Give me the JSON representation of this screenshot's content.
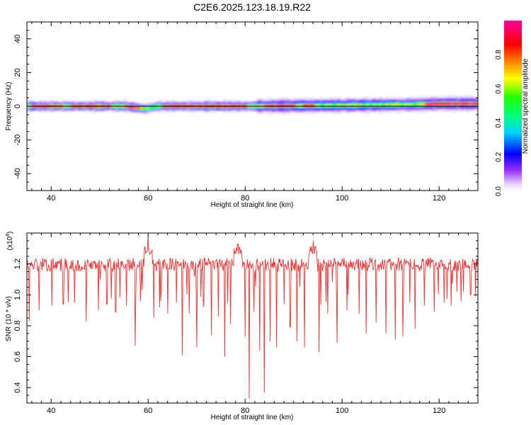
{
  "figure_title": "C2E6.2025.123.18.19.R22",
  "chart_data": [
    {
      "type": "heatmap",
      "xlabel": "Height of straight line (km)",
      "ylabel": "Frequency (Hz)",
      "xlim": [
        35,
        128
      ],
      "ylim": [
        -50,
        50
      ],
      "xticks": [
        40,
        60,
        80,
        100,
        120
      ],
      "yticks": [
        -40,
        -20,
        0,
        20,
        40
      ],
      "grid": false,
      "colorbar": {
        "label": "Normalized spectral amplitude",
        "range": [
          0,
          1
        ],
        "ticks": [
          "0.0",
          "0.2",
          "0.4",
          "0.6",
          "0.8"
        ],
        "colormap": "rainbow (violet-blue-cyan-green-yellow-red-magenta)",
        "orientation": "vertical"
      },
      "description_of_signal": "narrow band centered near 0 Hz across all heights; width about +/-2 to +/-5 Hz; strongest (red) near 36-58, 62-80, 84-90, 120-128 km; dip near 59 km",
      "band_center_hz": [
        {
          "x": 35,
          "y": 0.0
        },
        {
          "x": 55,
          "y": 0.0
        },
        {
          "x": 59,
          "y": -1.5
        },
        {
          "x": 62,
          "y": 0.0
        },
        {
          "x": 80,
          "y": 0.0
        },
        {
          "x": 100,
          "y": 0.5
        },
        {
          "x": 115,
          "y": 1.0
        },
        {
          "x": 120,
          "y": 1.5
        },
        {
          "x": 128,
          "y": 1.5
        }
      ],
      "strong_segments_km": [
        [
          36,
          42
        ],
        [
          44,
          52
        ],
        [
          55,
          58
        ],
        [
          63,
          80
        ],
        [
          84,
          90
        ],
        [
          92,
          94
        ],
        [
          117,
          128
        ]
      ]
    },
    {
      "type": "line",
      "xlabel": "Height of straight line (km)",
      "ylabel": "SNR (10 * v/v)",
      "y_multiplier": "(x10^4)",
      "xlim": [
        35,
        128
      ],
      "ylim": [
        0.3,
        1.4
      ],
      "xticks": [
        40,
        60,
        80,
        100,
        120
      ],
      "yticks": [
        "0.4",
        "0.6",
        "0.8",
        "1.0",
        "1.2"
      ],
      "color": "#ee3333",
      "grid": false,
      "series": [
        {
          "baseline": 1.2,
          "baseline_noise": 0.04,
          "peaks": [
            {
              "x": 60,
              "y": 1.38
            },
            {
              "x": 78.5,
              "y": 1.33
            },
            {
              "x": 94,
              "y": 1.35
            }
          ],
          "dips": [
            {
              "x": 35.5,
              "y": 0.83
            },
            {
              "x": 37.5,
              "y": 0.9
            },
            {
              "x": 40.2,
              "y": 0.93
            },
            {
              "x": 42.5,
              "y": 0.94
            },
            {
              "x": 44.8,
              "y": 0.95
            },
            {
              "x": 47.2,
              "y": 0.83
            },
            {
              "x": 49.8,
              "y": 0.9
            },
            {
              "x": 51.5,
              "y": 0.94
            },
            {
              "x": 53.3,
              "y": 0.89
            },
            {
              "x": 55.5,
              "y": 0.93
            },
            {
              "x": 57.3,
              "y": 0.67
            },
            {
              "x": 58.4,
              "y": 0.96
            },
            {
              "x": 61.2,
              "y": 0.85
            },
            {
              "x": 62.4,
              "y": 0.92
            },
            {
              "x": 64.0,
              "y": 0.88
            },
            {
              "x": 65.8,
              "y": 0.95
            },
            {
              "x": 67.0,
              "y": 0.61
            },
            {
              "x": 68.5,
              "y": 0.88
            },
            {
              "x": 70.0,
              "y": 0.66
            },
            {
              "x": 71.5,
              "y": 0.92
            },
            {
              "x": 73.0,
              "y": 0.74
            },
            {
              "x": 74.5,
              "y": 0.86
            },
            {
              "x": 75.8,
              "y": 0.6
            },
            {
              "x": 77.0,
              "y": 0.81
            },
            {
              "x": 78.2,
              "y": 0.33
            },
            {
              "x": 79.2,
              "y": 0.84
            },
            {
              "x": 80.0,
              "y": 0.73
            },
            {
              "x": 80.8,
              "y": 0.33
            },
            {
              "x": 81.8,
              "y": 0.89
            },
            {
              "x": 83.0,
              "y": 0.64
            },
            {
              "x": 84.0,
              "y": 0.37
            },
            {
              "x": 85.2,
              "y": 0.7
            },
            {
              "x": 86.5,
              "y": 0.66
            },
            {
              "x": 88.0,
              "y": 0.94
            },
            {
              "x": 89.3,
              "y": 0.79
            },
            {
              "x": 90.7,
              "y": 0.7
            },
            {
              "x": 92.2,
              "y": 0.66
            },
            {
              "x": 93.5,
              "y": 0.92
            },
            {
              "x": 95.2,
              "y": 0.63
            },
            {
              "x": 97.0,
              "y": 0.88
            },
            {
              "x": 99.0,
              "y": 0.69
            },
            {
              "x": 101.0,
              "y": 0.9
            },
            {
              "x": 103.5,
              "y": 0.88
            },
            {
              "x": 105.0,
              "y": 0.75
            },
            {
              "x": 107.0,
              "y": 0.82
            },
            {
              "x": 109.0,
              "y": 0.75
            },
            {
              "x": 111.0,
              "y": 0.71
            },
            {
              "x": 112.5,
              "y": 0.73
            },
            {
              "x": 115.0,
              "y": 0.78
            },
            {
              "x": 117.0,
              "y": 0.93
            },
            {
              "x": 119.0,
              "y": 0.89
            },
            {
              "x": 121.0,
              "y": 0.95
            },
            {
              "x": 122.5,
              "y": 0.93
            },
            {
              "x": 124.5,
              "y": 0.96
            },
            {
              "x": 126.5,
              "y": 1.0
            },
            {
              "x": 127.5,
              "y": 0.99
            }
          ]
        }
      ]
    }
  ]
}
